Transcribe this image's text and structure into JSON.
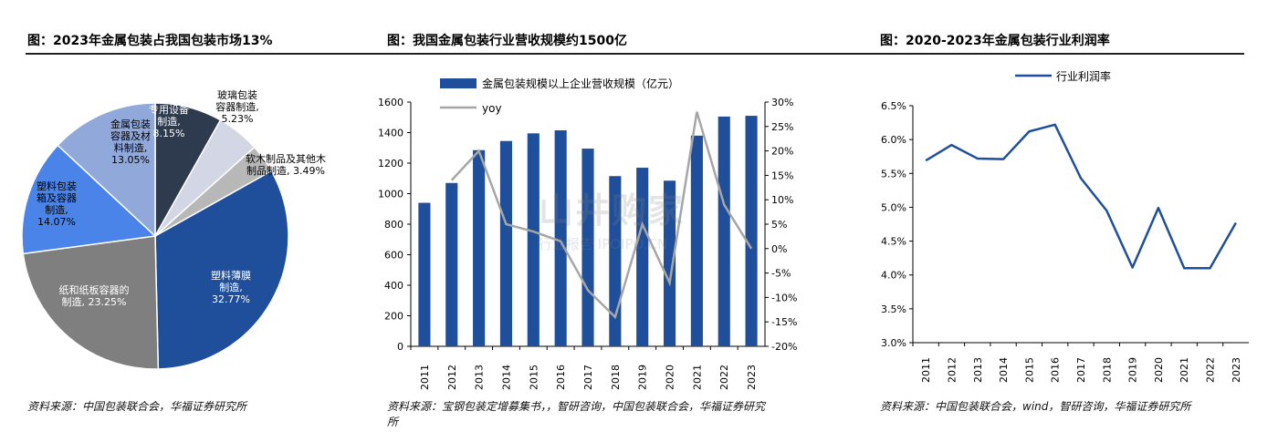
{
  "panels": [
    {
      "title": "图：2023年金属包装占我国包装市场13%",
      "source": "资料来源：中国包装联合会，华福证券研究所"
    },
    {
      "title": "图：我国金属包装行业营收规模约1500亿",
      "source": "资料来源：宝钢包装定增募集书，，智研咨询，中国包装联合会，华福证券研究所"
    },
    {
      "title": "图：2020-2023年金属包装行业利润率",
      "source": "资料来源：中国包装联合会，wind，智研咨询，华福证券研究所"
    }
  ],
  "watermark": {
    "main": "山井购家",
    "sub": "行业报告 IPOIPO.CN"
  },
  "chart_data": [
    {
      "type": "pie",
      "title": "图：2023年金属包装占我国包装市场13%",
      "slices": [
        {
          "label": "专用设备制造",
          "value": 8.15,
          "text": "专用设备\n制造,\n8.15%",
          "color": "#2e3a4d"
        },
        {
          "label": "玻璃包装容器制造",
          "value": 5.23,
          "text": "玻璃包装\n容器制造,\n5.23%",
          "color": "#d3d6e4"
        },
        {
          "label": "软木制品及其他木制品制造",
          "value": 3.49,
          "text": "软木制品及其他木\n制品制造, 3.49%",
          "color": "#b8b8b8"
        },
        {
          "label": "塑料薄膜制造",
          "value": 32.77,
          "text": "塑料薄膜\n制造,\n32.77%",
          "color": "#1f4e9a"
        },
        {
          "label": "纸和纸板容器的制造",
          "value": 23.25,
          "text": "纸和纸板容器的\n制造, 23.25%",
          "color": "#7f7f7f"
        },
        {
          "label": "塑料包装箱及容器制造",
          "value": 14.07,
          "text": "塑料包装\n箱及容器\n制造,\n14.07%",
          "color": "#4b84e8"
        },
        {
          "label": "金属包装容器及材料制造",
          "value": 13.05,
          "text": "金属包装\n容器及材\n料制造,\n13.05%",
          "color": "#90a8da"
        }
      ]
    },
    {
      "type": "bar",
      "title": "图：我国金属包装行业营收规模约1500亿",
      "categories": [
        "2011",
        "2012",
        "2013",
        "2014",
        "2015",
        "2016",
        "2017",
        "2018",
        "2019",
        "2020",
        "2021",
        "2022",
        "2023"
      ],
      "series": [
        {
          "name": "金属包装规模以上企业营收规模（亿元）",
          "type": "bar",
          "axis": "left",
          "color": "#1f4e9a",
          "values": [
            940,
            1070,
            1285,
            1345,
            1395,
            1415,
            1295,
            1115,
            1170,
            1085,
            1380,
            1505,
            1510
          ]
        },
        {
          "name": "yoy",
          "type": "line",
          "axis": "right",
          "color": "#a6a6a6",
          "values": [
            null,
            14,
            20,
            5,
            3.5,
            1.5,
            -8.5,
            -14,
            5,
            -7,
            28,
            9,
            0
          ]
        }
      ],
      "ylim_left": [
        0,
        1600
      ],
      "yticks_left": [
        0,
        200,
        400,
        600,
        800,
        1000,
        1200,
        1400,
        1600
      ],
      "ylim_right": [
        -20,
        30
      ],
      "yticks_right": [
        "-20%",
        "-15%",
        "-10%",
        "-5%",
        "0%",
        "5%",
        "10%",
        "15%",
        "20%",
        "25%",
        "30%"
      ],
      "legend": "top-left"
    },
    {
      "type": "line",
      "title": "图：2020-2023年金属包装行业利润率",
      "categories": [
        "2011",
        "2012",
        "2013",
        "2014",
        "2015",
        "2016",
        "2017",
        "2018",
        "2019",
        "2020",
        "2021",
        "2022",
        "2023"
      ],
      "series": [
        {
          "name": "行业利润率",
          "color": "#1f4e9a",
          "values": [
            5.69,
            5.92,
            5.72,
            5.71,
            6.12,
            6.22,
            5.43,
            4.95,
            4.11,
            4.99,
            4.1,
            4.1,
            4.77
          ]
        }
      ],
      "ylim": [
        3.0,
        6.5
      ],
      "yticks": [
        "3.0%",
        "3.5%",
        "4.0%",
        "4.5%",
        "5.0%",
        "5.5%",
        "6.0%",
        "6.5%"
      ],
      "legend": "top"
    }
  ]
}
